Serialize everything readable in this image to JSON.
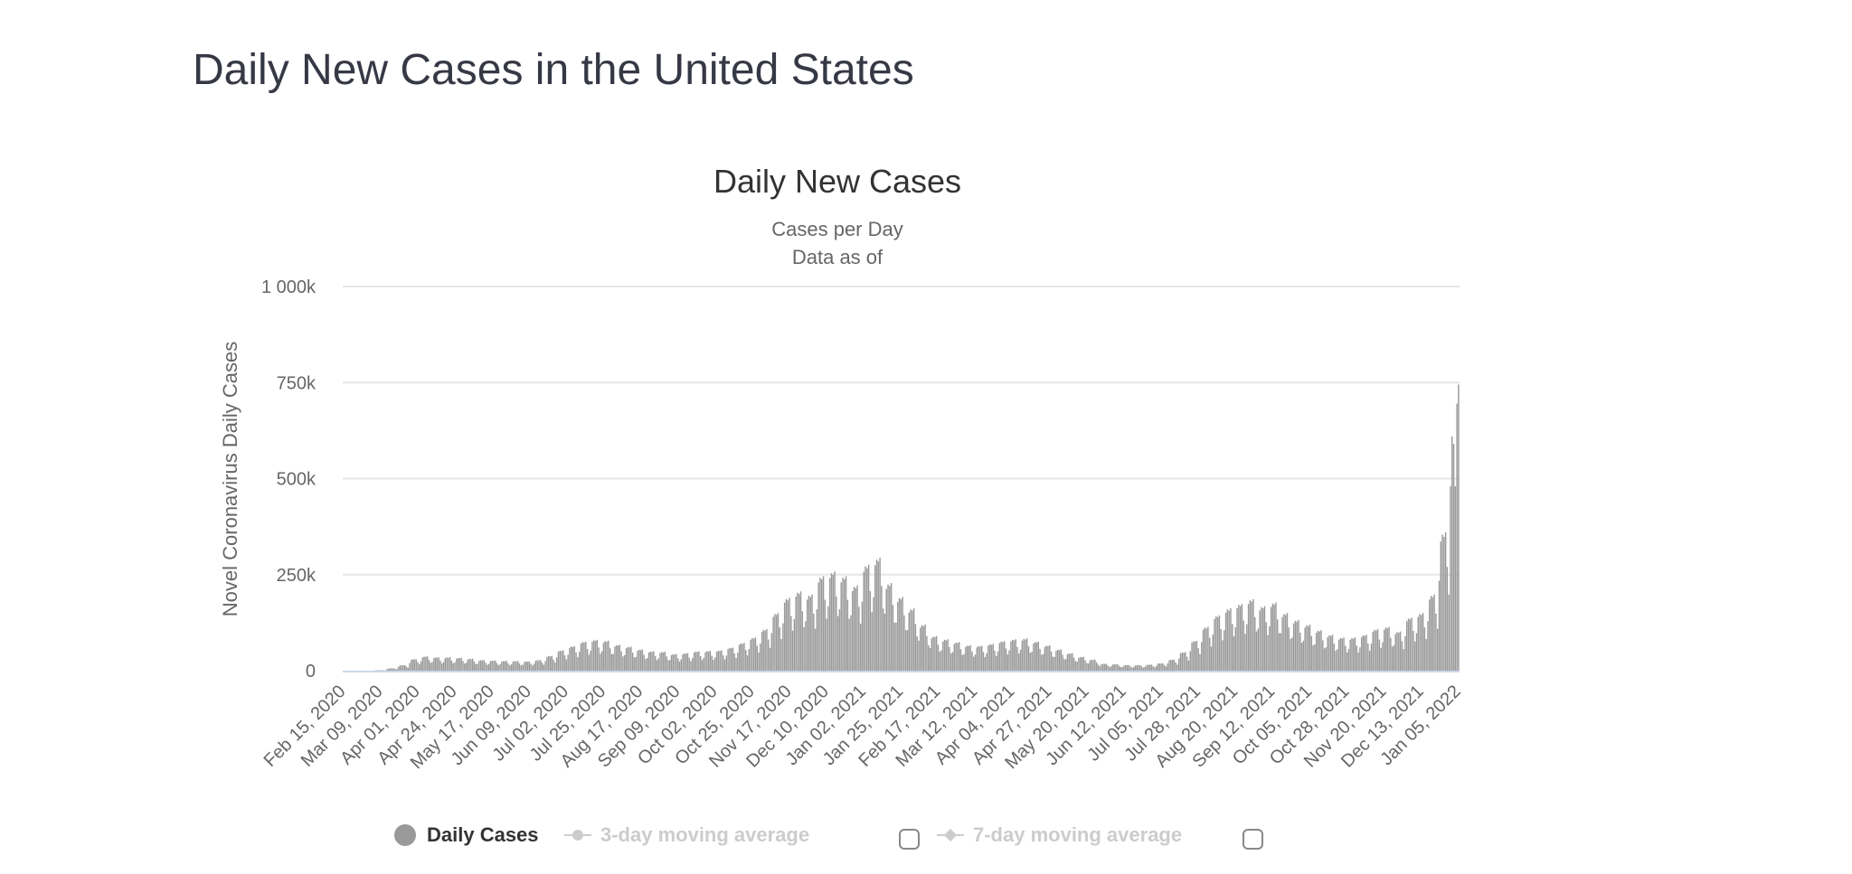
{
  "page": {
    "heading": "Daily New Cases in the United States"
  },
  "chart_data": {
    "type": "bar",
    "title": "Daily New Cases",
    "subtitle": "Cases per Day",
    "subtitle2": "Data as of",
    "xlabel": "",
    "ylabel": "Novel Coronavirus Daily Cases",
    "ylim": [
      0,
      1000000
    ],
    "grid": true,
    "y_ticks": [
      {
        "value": 0,
        "label": "0"
      },
      {
        "value": 250000,
        "label": "250k"
      },
      {
        "value": 500000,
        "label": "500k"
      },
      {
        "value": 750000,
        "label": "750k"
      },
      {
        "value": 1000000,
        "label": "1 000k"
      }
    ],
    "x_start_date": "Feb 15, 2020",
    "x_ticks": [
      "Feb 15, 2020",
      "Mar 09, 2020",
      "Apr 01, 2020",
      "Apr 24, 2020",
      "May 17, 2020",
      "Jun 09, 2020",
      "Jul 02, 2020",
      "Jul 25, 2020",
      "Aug 17, 2020",
      "Sep 09, 2020",
      "Oct 02, 2020",
      "Oct 25, 2020",
      "Nov 17, 2020",
      "Dec 10, 2020",
      "Jan 02, 2021",
      "Jan 25, 2021",
      "Feb 17, 2021",
      "Mar 12, 2021",
      "Apr 04, 2021",
      "Apr 27, 2021",
      "May 20, 2021",
      "Jun 12, 2021",
      "Jul 05, 2021",
      "Jul 28, 2021",
      "Aug 20, 2021",
      "Sep 12, 2021",
      "Oct 05, 2021",
      "Oct 28, 2021",
      "Nov 20, 2021",
      "Dec 13, 2021",
      "Jan 05, 2022"
    ],
    "x_tick_interval_days": 23,
    "series_units": "cases (thousands)",
    "series": [
      {
        "name": "Daily Cases",
        "color": "#999999",
        "visible": true,
        "weekly_values_k": [
          0,
          0,
          0,
          1,
          5,
          12,
          25,
          31,
          29,
          29,
          28,
          26,
          23,
          22,
          21,
          21,
          20,
          23,
          32,
          44,
          53,
          63,
          67,
          65,
          56,
          52,
          46,
          42,
          41,
          36,
          38,
          42,
          43,
          44,
          50,
          60,
          72,
          90,
          125,
          158,
          172,
          165,
          205,
          215,
          205,
          185,
          230,
          245,
          190,
          160,
          135,
          100,
          75,
          68,
          62,
          55,
          54,
          58,
          64,
          68,
          70,
          63,
          55,
          46,
          38,
          30,
          24,
          15,
          14,
          12,
          12,
          13,
          16,
          24,
          40,
          65,
          95,
          120,
          135,
          145,
          155,
          140,
          148,
          125,
          110,
          100,
          88,
          78,
          72,
          72,
          78,
          90,
          95,
          85,
          115,
          125,
          165,
          300
        ],
        "weekday_pattern": [
          0.78,
          1.12,
          1.18,
          1.16,
          1.2,
          0.9,
          0.66
        ],
        "final_days_k": [
          480,
          610,
          590,
          480,
          695,
          745
        ]
      },
      {
        "name": "3-day moving average",
        "color": "#cccccc",
        "visible": false
      },
      {
        "name": "7-day moving average",
        "color": "#cccccc",
        "visible": false
      }
    ],
    "legend_position": "bottom-center",
    "colors": {
      "bar": "#999999",
      "gridline": "#e6e6e6",
      "baseline": "#ccd6eb"
    }
  }
}
